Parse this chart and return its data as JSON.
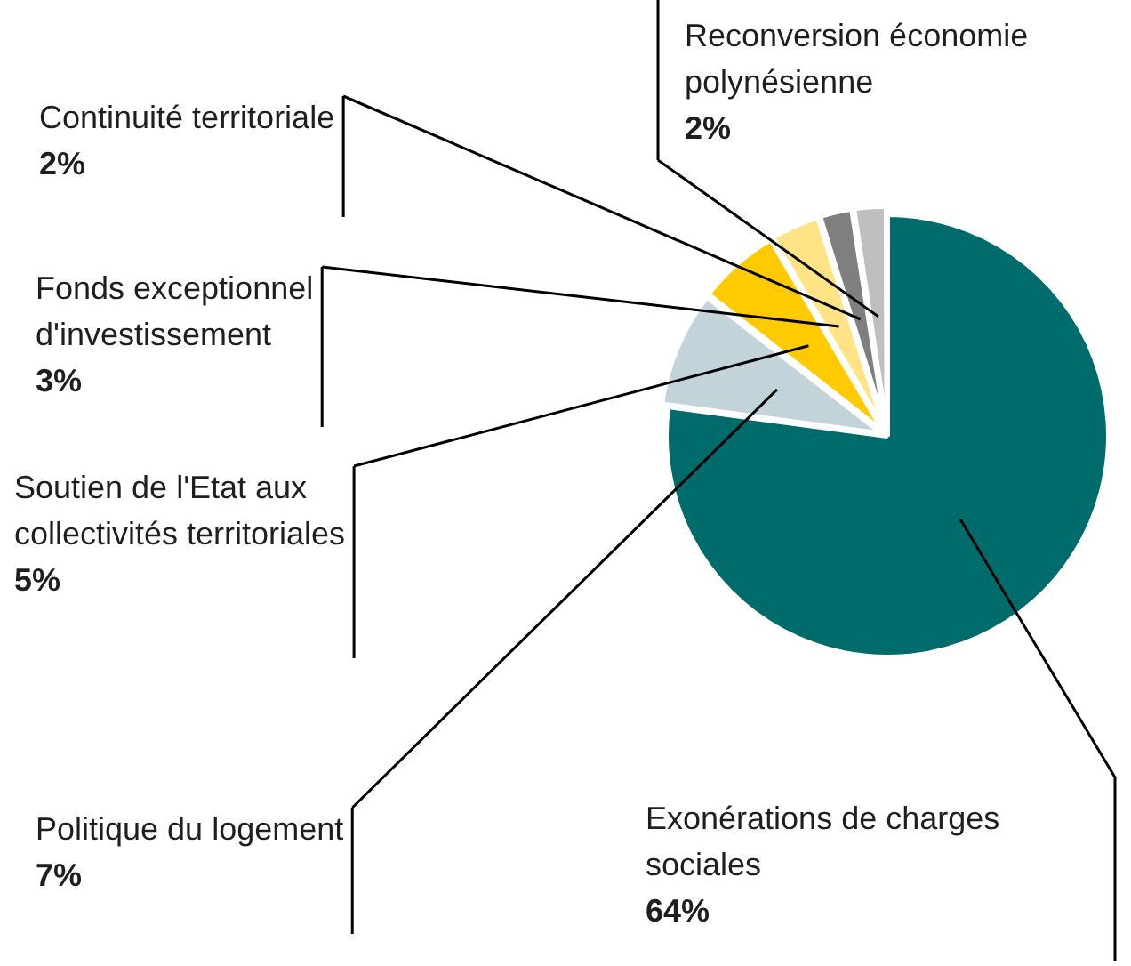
{
  "chart_data": {
    "type": "pie",
    "categories": [
      "Exonérations de charges sociales",
      "Politique du logement",
      "Soutien de l'Etat aux collectivités territoriales",
      "Fonds exceptionnel d'investissement",
      "Continuité territoriale",
      "Reconversion économie polynésienne"
    ],
    "values": [
      64,
      7,
      5,
      3,
      2,
      2
    ],
    "colors": [
      "#006b6b",
      "#c2d4da",
      "#ffca00",
      "#ffe384",
      "#7f7f7f",
      "#bfbfbf"
    ],
    "value_labels": [
      "64%",
      "7%",
      "5%",
      "3%",
      "2%",
      "2%"
    ],
    "legend": false
  }
}
